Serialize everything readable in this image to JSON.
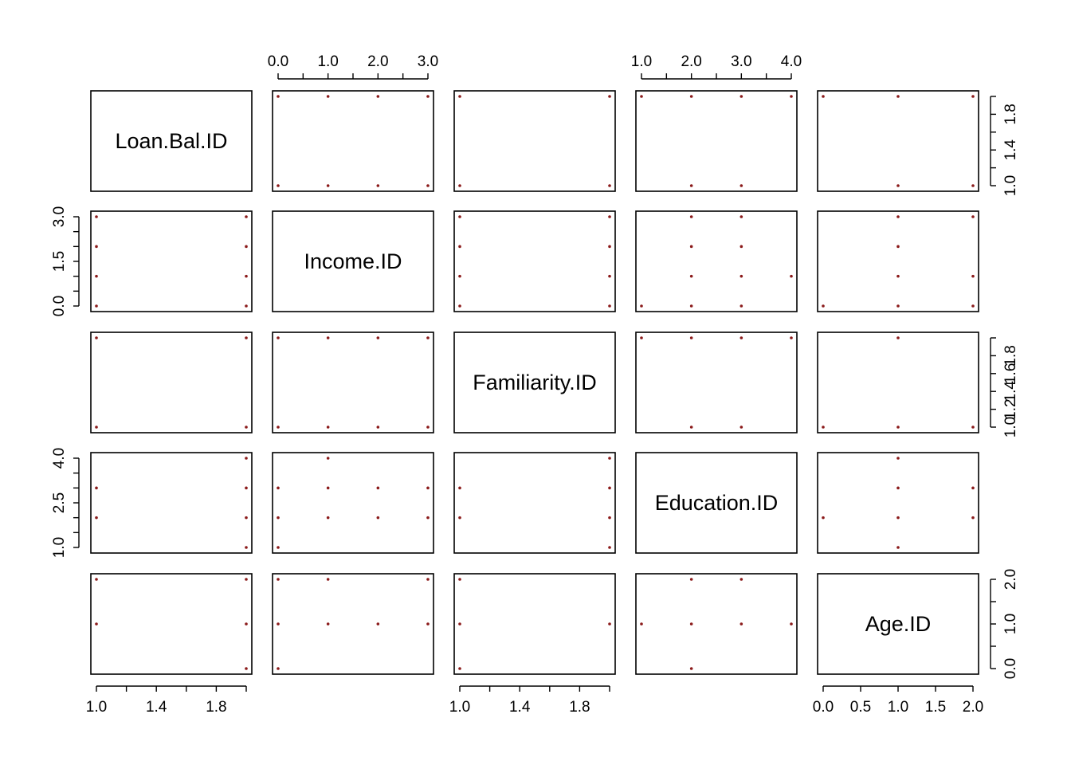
{
  "chart_data": {
    "type": "scatter",
    "plot_kind": "scatterplot-matrix",
    "variables": [
      "Loan.Bal.ID",
      "Income.ID",
      "Familiarity.ID",
      "Education.ID",
      "Age.ID"
    ],
    "axes": [
      {
        "name": "Loan.Bal.ID",
        "range": [
          1,
          2
        ],
        "ticks": [
          1.0,
          1.2,
          1.4,
          1.6,
          1.8,
          2.0
        ],
        "tick_labels": [
          "1.0",
          "",
          "1.4",
          "",
          "1.8",
          ""
        ]
      },
      {
        "name": "Income.ID",
        "range": [
          0,
          3
        ],
        "ticks": [
          0,
          0.5,
          1,
          1.5,
          2,
          2.5,
          3
        ],
        "tick_labels": [
          "0.0",
          "",
          "1.0",
          "",
          "2.0",
          "",
          "3.0"
        ],
        "side_tick_labels": [
          "0.0",
          "",
          "",
          "1.5",
          "",
          "",
          "3.0"
        ]
      },
      {
        "name": "Familiarity.ID",
        "range": [
          1,
          2
        ],
        "ticks": [
          1.0,
          1.2,
          1.4,
          1.6,
          1.8,
          2.0
        ],
        "tick_labels": [
          "1.0",
          "",
          "1.4",
          "",
          "1.8",
          ""
        ],
        "side_tick_labels": [
          "1.0",
          "1.2",
          "1.4",
          "1.6",
          "1.8",
          ""
        ]
      },
      {
        "name": "Education.ID",
        "range": [
          1,
          4
        ],
        "ticks": [
          1,
          1.5,
          2,
          2.5,
          3,
          3.5,
          4
        ],
        "tick_labels": [
          "1.0",
          "",
          "2.0",
          "",
          "3.0",
          "",
          "4.0"
        ],
        "side_tick_labels": [
          "1.0",
          "",
          "",
          "2.5",
          "",
          "",
          "4.0"
        ]
      },
      {
        "name": "Age.ID",
        "range": [
          0,
          2
        ],
        "ticks": [
          0,
          0.5,
          1,
          1.5,
          2
        ],
        "tick_labels": [
          "0.0",
          "0.5",
          "1.0",
          "1.5",
          "2.0"
        ],
        "side_tick_labels": [
          "0.0",
          "",
          "1.0",
          "",
          "2.0"
        ]
      }
    ],
    "pair_points": {
      "0-1": [
        [
          1,
          0
        ],
        [
          1,
          1
        ],
        [
          1,
          2
        ],
        [
          1,
          3
        ],
        [
          2,
          0
        ],
        [
          2,
          1
        ],
        [
          2,
          2
        ],
        [
          2,
          3
        ]
      ],
      "0-2": [
        [
          1,
          1
        ],
        [
          1,
          2
        ],
        [
          2,
          1
        ],
        [
          2,
          2
        ]
      ],
      "0-3": [
        [
          1,
          2
        ],
        [
          1,
          3
        ],
        [
          2,
          1
        ],
        [
          2,
          2
        ],
        [
          2,
          3
        ],
        [
          2,
          4
        ]
      ],
      "0-4": [
        [
          1,
          1
        ],
        [
          1,
          2
        ],
        [
          2,
          0
        ],
        [
          2,
          1
        ],
        [
          2,
          2
        ]
      ],
      "1-2": [
        [
          0,
          1
        ],
        [
          0,
          2
        ],
        [
          1,
          1
        ],
        [
          1,
          2
        ],
        [
          2,
          1
        ],
        [
          2,
          2
        ],
        [
          3,
          1
        ],
        [
          3,
          2
        ]
      ],
      "1-3": [
        [
          0,
          1
        ],
        [
          0,
          2
        ],
        [
          0,
          3
        ],
        [
          1,
          2
        ],
        [
          1,
          3
        ],
        [
          1,
          4
        ],
        [
          2,
          2
        ],
        [
          2,
          3
        ],
        [
          3,
          2
        ],
        [
          3,
          3
        ]
      ],
      "1-4": [
        [
          0,
          0
        ],
        [
          0,
          1
        ],
        [
          0,
          2
        ],
        [
          1,
          1
        ],
        [
          1,
          2
        ],
        [
          2,
          1
        ],
        [
          3,
          1
        ],
        [
          3,
          2
        ]
      ],
      "2-3": [
        [
          1,
          2
        ],
        [
          1,
          3
        ],
        [
          2,
          1
        ],
        [
          2,
          2
        ],
        [
          2,
          3
        ],
        [
          2,
          4
        ]
      ],
      "2-4": [
        [
          1,
          0
        ],
        [
          1,
          1
        ],
        [
          1,
          2
        ],
        [
          2,
          1
        ]
      ],
      "3-4": [
        [
          1,
          1
        ],
        [
          2,
          0
        ],
        [
          2,
          1
        ],
        [
          2,
          2
        ],
        [
          3,
          1
        ],
        [
          3,
          2
        ],
        [
          4,
          1
        ]
      ]
    },
    "point_color": "#8b1a1a",
    "frame_color": "#000000"
  }
}
